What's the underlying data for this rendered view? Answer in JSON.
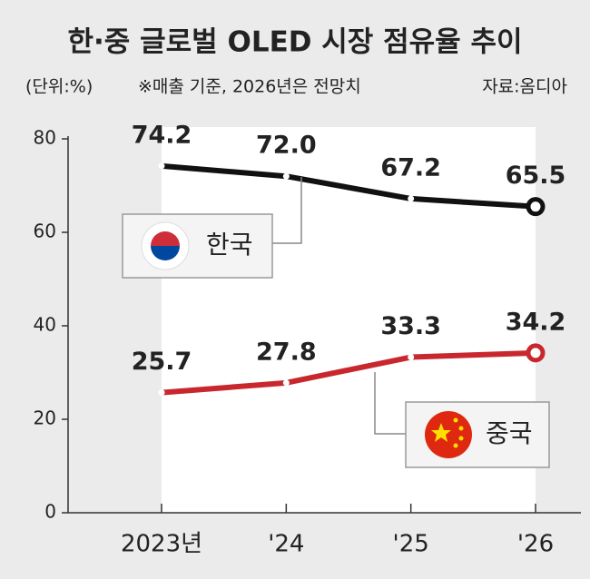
{
  "chart_data": {
    "type": "line",
    "title": "한·중 글로벌 OLED 시장 점유율 추이",
    "unit": "(단위:%)",
    "note": "※매출 기준, 2026년은 전망치",
    "source": "자료:옴디아",
    "categories": [
      "2023년",
      "'24",
      "'25",
      "'26"
    ],
    "series": [
      {
        "name": "한국",
        "color": "#111111",
        "values": [
          74.2,
          72.0,
          67.2,
          65.5
        ],
        "value_labels": [
          "74.2",
          "72.0",
          "67.2",
          "65.5"
        ]
      },
      {
        "name": "중국",
        "color": "#c8282d",
        "values": [
          25.7,
          27.8,
          33.3,
          34.2
        ],
        "value_labels": [
          "25.7",
          "27.8",
          "33.3",
          "34.2"
        ]
      }
    ],
    "ylim": [
      0,
      80
    ],
    "yticks": [
      0,
      20,
      40,
      60,
      80
    ]
  }
}
